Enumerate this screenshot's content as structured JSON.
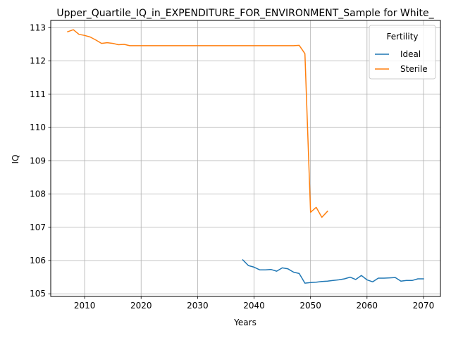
{
  "chart_data": {
    "type": "line",
    "title": "Upper_Quartile_IQ_in_EXPENDITURE_FOR_ENVIRONMENT_Sample for White_",
    "xlabel": "Years",
    "ylabel": "IQ",
    "xlim": [
      2004,
      2073
    ],
    "ylim": [
      104.92,
      113.22
    ],
    "xticks": [
      2010,
      2020,
      2030,
      2040,
      2050,
      2060,
      2070
    ],
    "yticks": [
      105,
      106,
      107,
      108,
      109,
      110,
      111,
      112,
      113
    ],
    "grid": true,
    "legend": {
      "title": "Fertility",
      "placement": "top-right"
    },
    "series": [
      {
        "name": "Ideal",
        "color": "#1f77b4",
        "x": [
          2038,
          2039,
          2040,
          2041,
          2042,
          2043,
          2044,
          2045,
          2046,
          2047,
          2048,
          2049,
          2050,
          2051,
          2052,
          2053,
          2054,
          2055,
          2056,
          2057,
          2058,
          2059,
          2060,
          2061,
          2062,
          2063,
          2064,
          2065,
          2066,
          2067,
          2068,
          2069,
          2070
        ],
        "y": [
          106.02,
          105.85,
          105.8,
          105.72,
          105.72,
          105.73,
          105.68,
          105.78,
          105.75,
          105.65,
          105.61,
          105.32,
          105.34,
          105.35,
          105.37,
          105.38,
          105.4,
          105.42,
          105.45,
          105.5,
          105.43,
          105.55,
          105.42,
          105.36,
          105.47,
          105.47,
          105.48,
          105.49,
          105.38,
          105.4,
          105.4,
          105.45,
          105.45
        ]
      },
      {
        "name": "Sterile",
        "color": "#ff7f0e",
        "x": [
          2007,
          2008,
          2009,
          2010,
          2011,
          2012,
          2013,
          2014,
          2015,
          2016,
          2017,
          2018,
          2019,
          2020,
          2021,
          2022,
          2023,
          2024,
          2025,
          2026,
          2027,
          2028,
          2029,
          2030,
          2031,
          2032,
          2033,
          2034,
          2035,
          2036,
          2037,
          2038,
          2039,
          2040,
          2041,
          2042,
          2043,
          2044,
          2045,
          2046,
          2047,
          2048,
          2049,
          2050,
          2051,
          2052,
          2053
        ],
        "y": [
          112.88,
          112.94,
          112.8,
          112.77,
          112.72,
          112.63,
          112.53,
          112.55,
          112.53,
          112.49,
          112.5,
          112.46,
          112.46,
          112.46,
          112.46,
          112.46,
          112.46,
          112.46,
          112.46,
          112.46,
          112.46,
          112.46,
          112.46,
          112.46,
          112.46,
          112.46,
          112.46,
          112.46,
          112.46,
          112.46,
          112.46,
          112.46,
          112.46,
          112.46,
          112.46,
          112.46,
          112.46,
          112.46,
          112.46,
          112.46,
          112.46,
          112.47,
          112.22,
          107.45,
          107.6,
          107.3,
          107.48
        ]
      }
    ]
  }
}
